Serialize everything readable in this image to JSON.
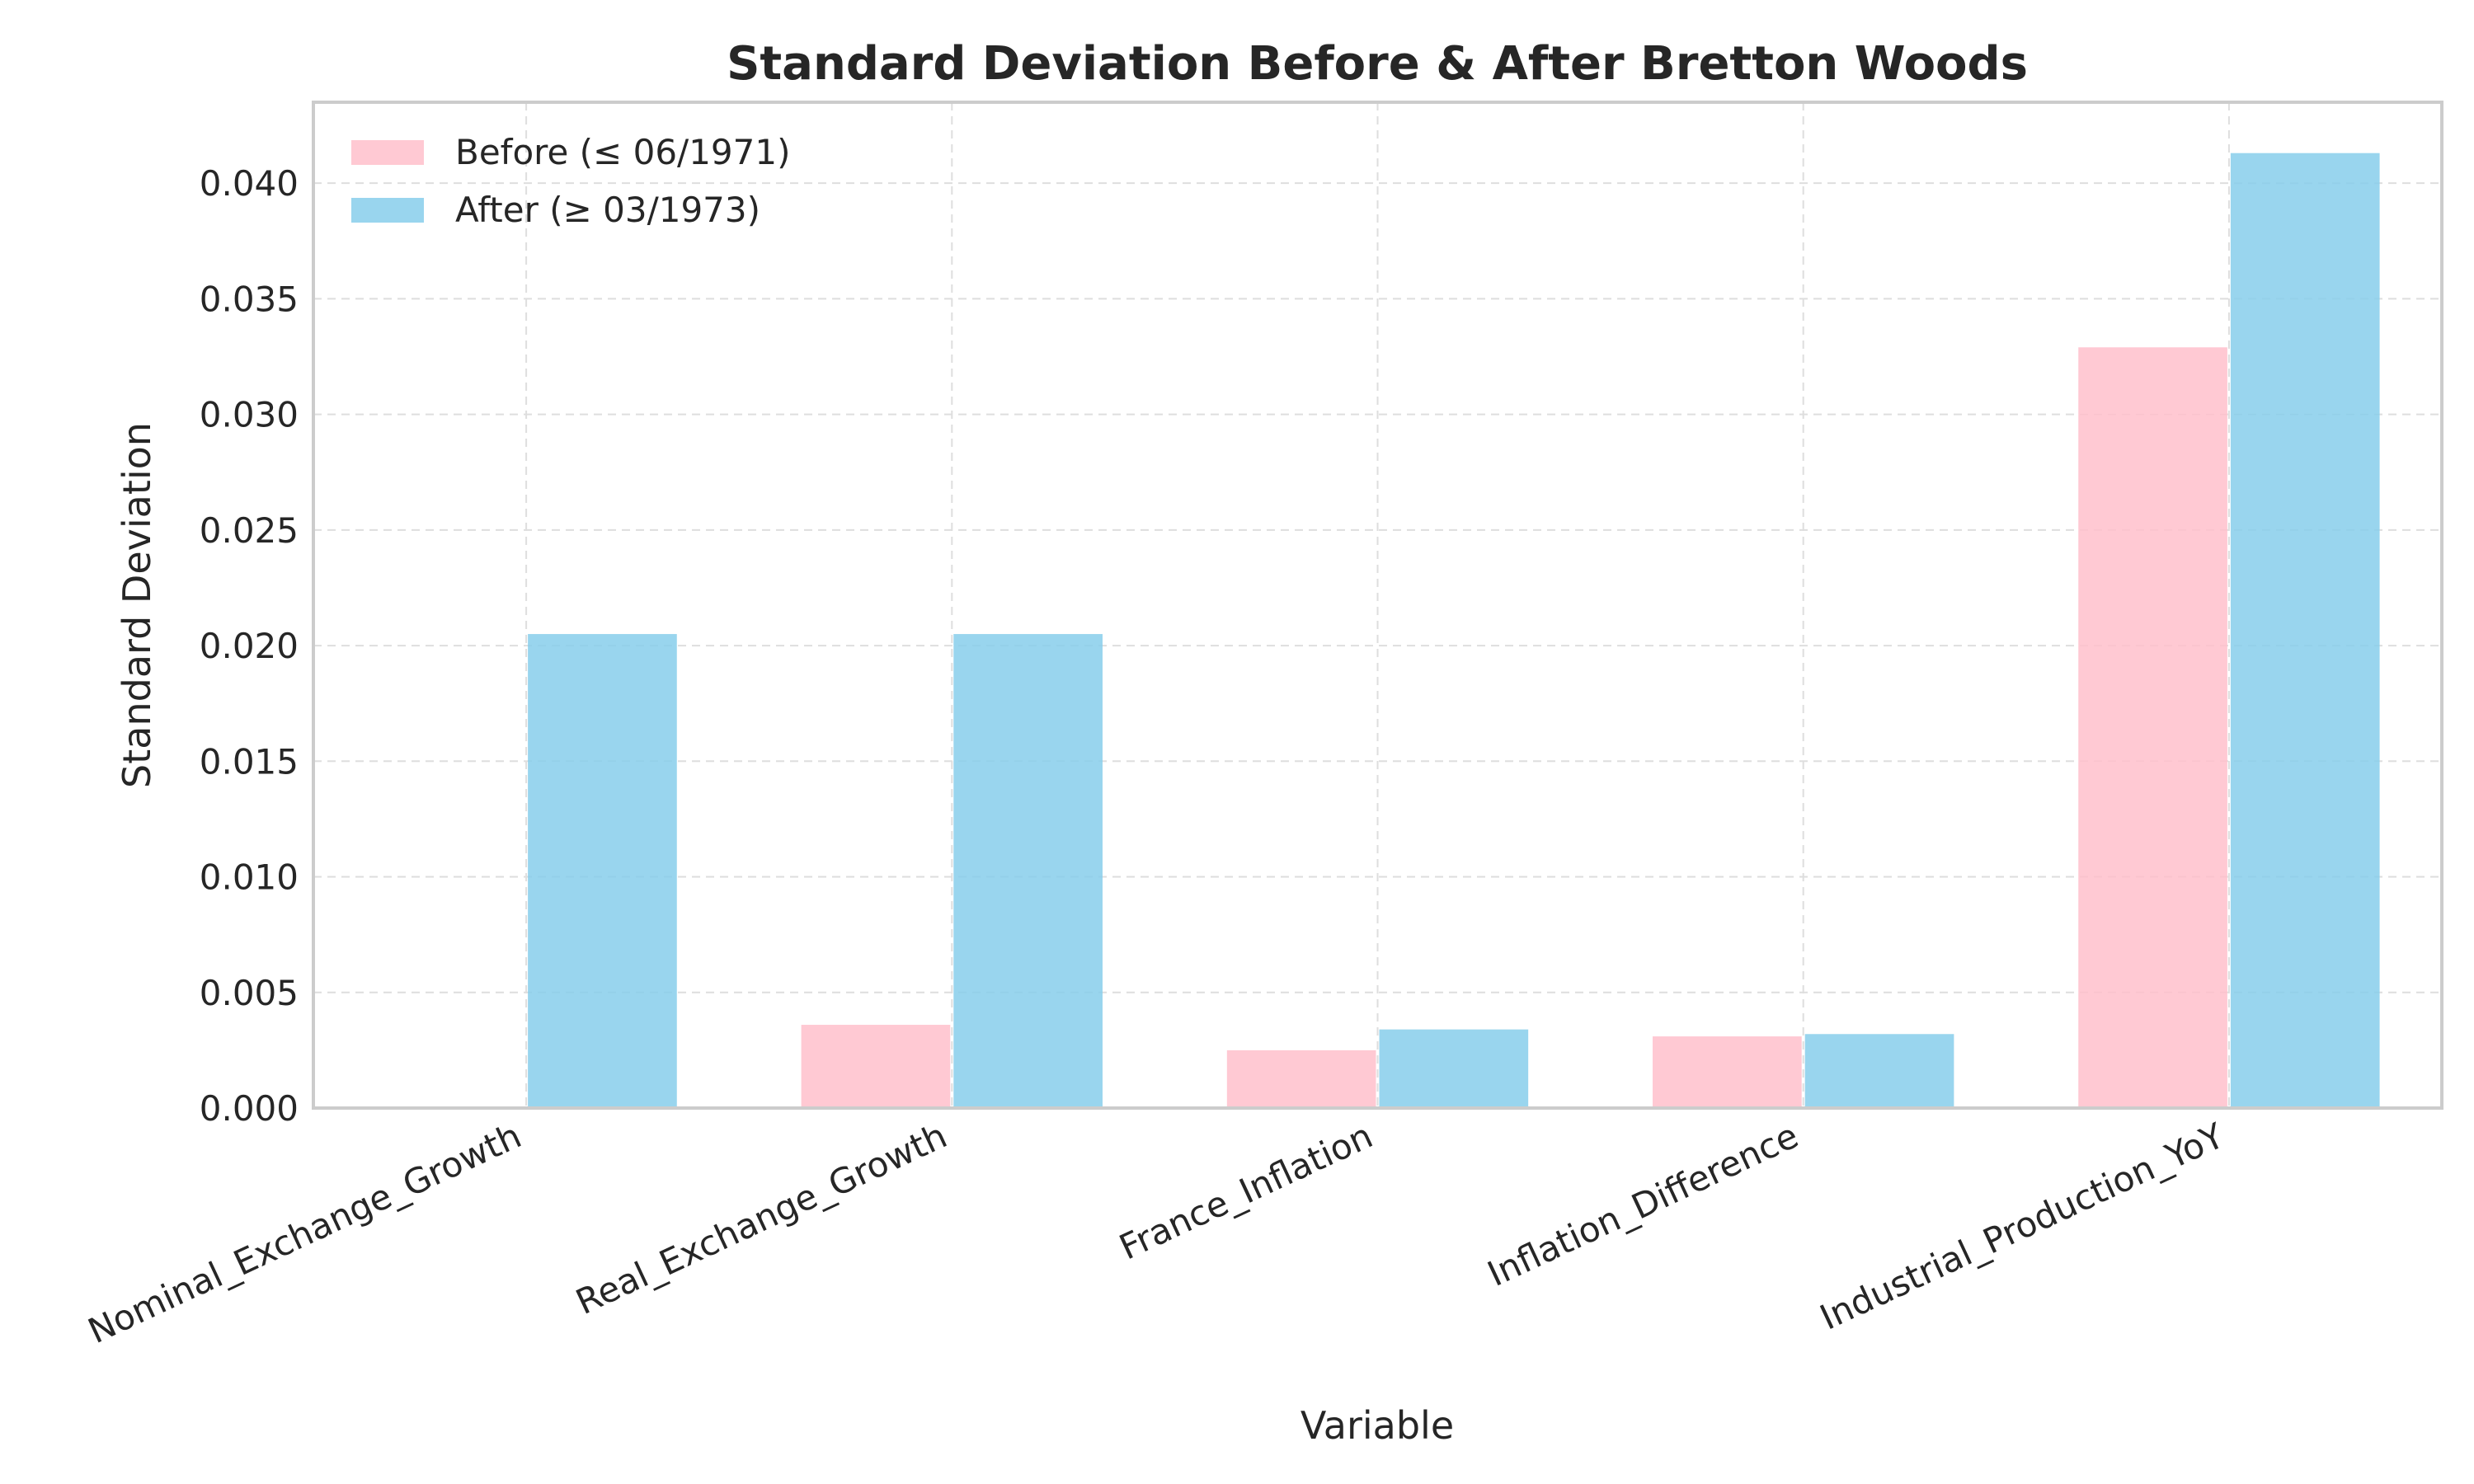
{
  "chart_data": {
    "type": "bar",
    "title": "Standard Deviation Before & After Bretton Woods",
    "xlabel": "Variable",
    "ylabel": "Standard Deviation",
    "categories": [
      "Nominal_Exchange_Growth",
      "Real_Exchange_Growth",
      "France_Inflation",
      "Inflation_Difference",
      "Industrial_Production_YoY"
    ],
    "series": [
      {
        "name": "Before (≤ 06/1971)",
        "color": "#ffc0cb",
        "values": [
          0.0,
          0.0036,
          0.0025,
          0.0031,
          0.0329
        ]
      },
      {
        "name": "After (≥ 03/1973)",
        "color": "#87ceeb",
        "values": [
          0.0205,
          0.0205,
          0.0034,
          0.0032,
          0.0413
        ]
      }
    ],
    "ylim": [
      0,
      0.0435
    ],
    "yticks": [
      "0.000",
      "0.005",
      "0.010",
      "0.015",
      "0.020",
      "0.025",
      "0.030",
      "0.035",
      "0.040"
    ],
    "grid": true,
    "legend_position": "top-left"
  }
}
